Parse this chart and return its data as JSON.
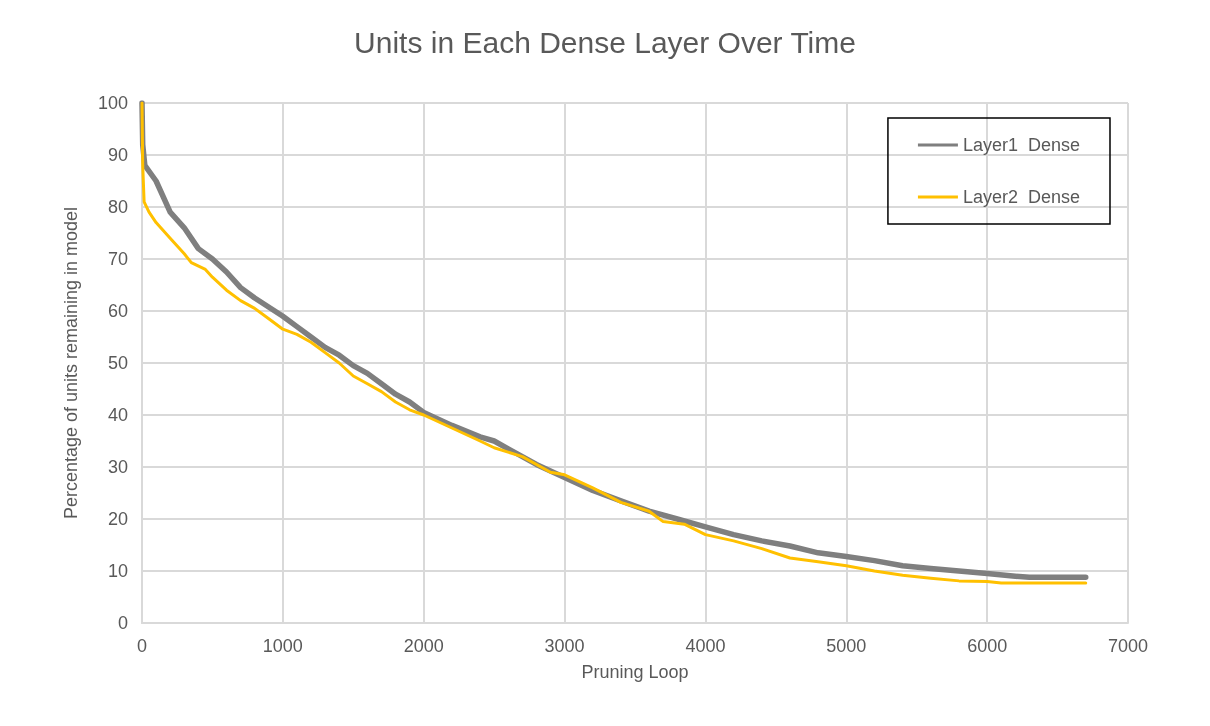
{
  "chart_data": {
    "type": "line",
    "title": "Units in Each Dense Layer Over Time",
    "xlabel": "Pruning Loop",
    "ylabel": "Percentage of units remaining in model",
    "xlim": [
      0,
      7000
    ],
    "xticks": [
      0,
      1000,
      2000,
      3000,
      4000,
      5000,
      6000,
      7000
    ],
    "ylim": [
      0,
      100
    ],
    "yticks": [
      0,
      10,
      20,
      30,
      40,
      50,
      60,
      70,
      80,
      90,
      100
    ],
    "grid": true,
    "legend": "top right",
    "marker": "none",
    "line_style": "solid",
    "series": [
      {
        "name": "Layer1  Dense",
        "color": "#7f7f7f",
        "x": [
          0,
          5,
          20,
          100,
          200,
          300,
          400,
          500,
          600,
          700,
          800,
          1000,
          1100,
          1200,
          1300,
          1400,
          1500,
          1600,
          1700,
          1800,
          1900,
          2000,
          2200,
          2400,
          2500,
          2600,
          2800,
          3000,
          3200,
          3400,
          3600,
          3800,
          4000,
          4200,
          4400,
          4600,
          4800,
          5000,
          5200,
          5400,
          5600,
          5800,
          6000,
          6200,
          6300,
          6700
        ],
        "values": [
          100,
          92,
          88,
          85,
          79,
          76,
          72,
          70,
          67.5,
          64.5,
          62.5,
          59,
          57,
          55,
          53,
          51.5,
          49.5,
          48,
          46,
          44,
          42.5,
          40.5,
          38,
          35.8,
          35,
          33.5,
          30.5,
          28,
          25.5,
          23.5,
          21.5,
          20,
          18.5,
          17,
          15.8,
          14.8,
          13.5,
          12.8,
          12,
          11,
          10.5,
          10,
          9.5,
          9,
          8.8,
          8.8
        ]
      },
      {
        "name": "Layer2  Dense",
        "color": "#ffc000",
        "x": [
          0,
          5,
          15,
          50,
          100,
          200,
          300,
          350,
          450,
          500,
          600,
          700,
          800,
          900,
          1000,
          1100,
          1200,
          1300,
          1400,
          1500,
          1600,
          1700,
          1800,
          1900,
          2000,
          2200,
          2400,
          2500,
          2700,
          2900,
          3000,
          3200,
          3400,
          3600,
          3700,
          3850,
          4000,
          4200,
          4400,
          4600,
          4800,
          5000,
          5200,
          5400,
          5600,
          5800,
          6000,
          6100,
          6700
        ],
        "values": [
          100,
          88,
          81,
          79,
          77,
          74,
          71,
          69.3,
          68,
          66.5,
          64,
          62,
          60.5,
          58.5,
          56.5,
          55.5,
          54,
          52,
          50,
          47.5,
          46,
          44.5,
          42.5,
          41,
          40,
          37.5,
          35,
          33.7,
          32,
          29,
          28.5,
          26,
          23.2,
          21.5,
          19.5,
          19,
          17,
          15.8,
          14.3,
          12.5,
          11.8,
          11,
          10,
          9.2,
          8.6,
          8.1,
          8,
          7.7,
          7.7
        ]
      }
    ]
  }
}
